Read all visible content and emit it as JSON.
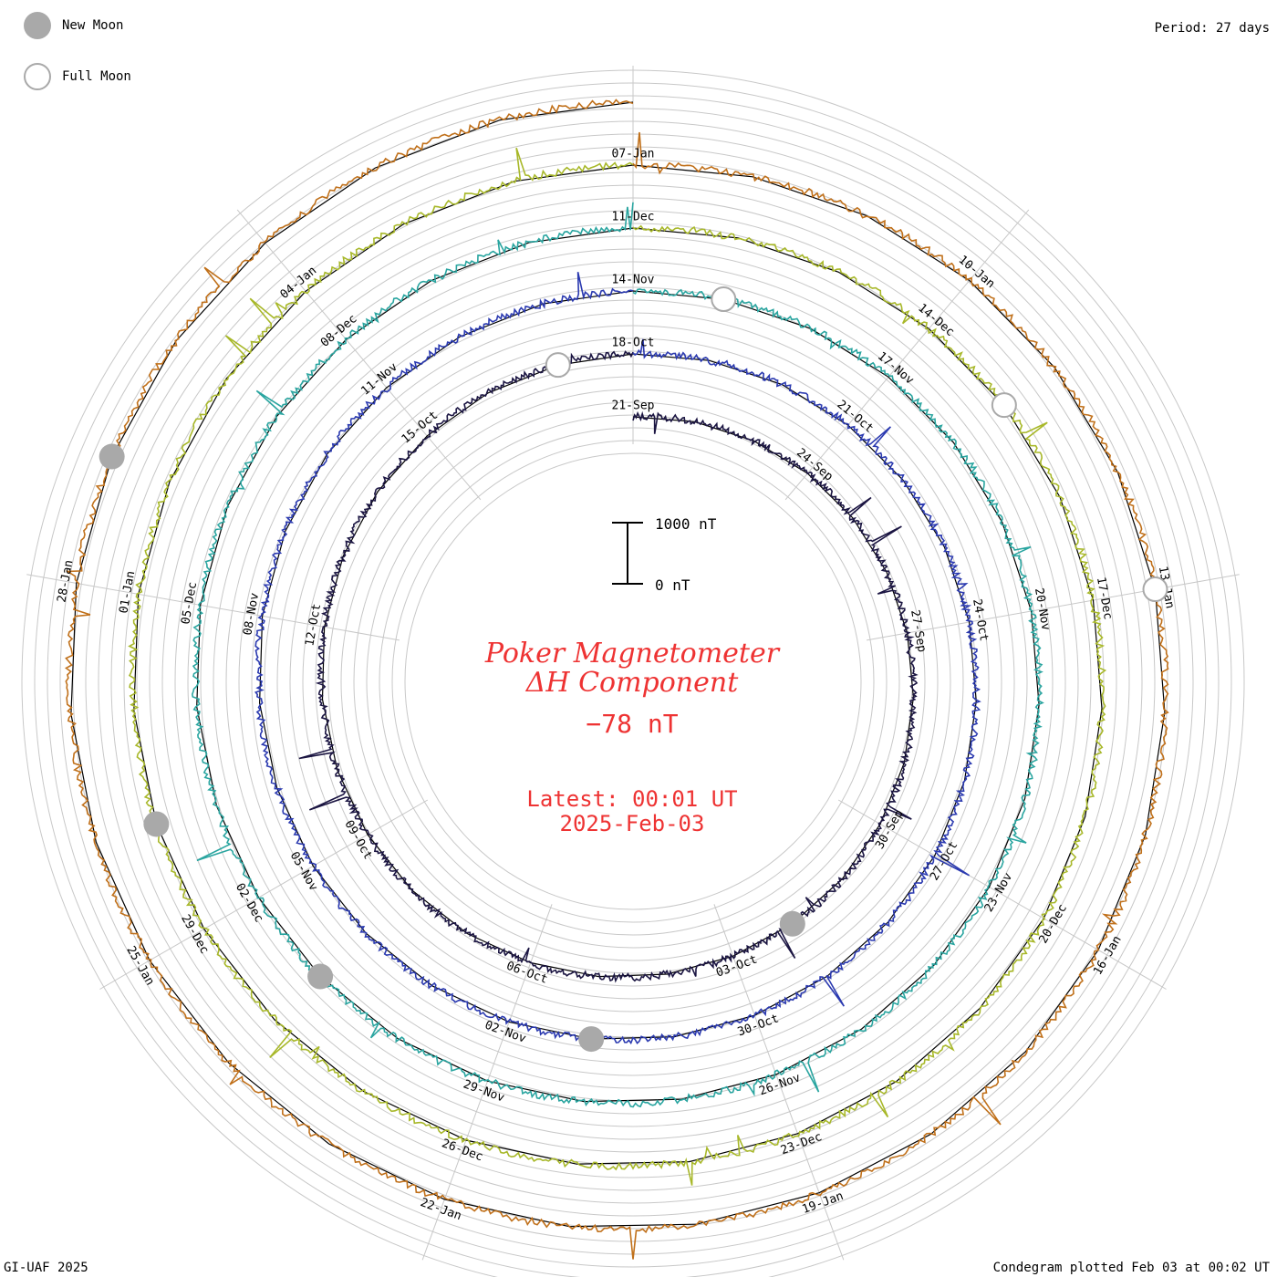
{
  "legend": {
    "new_moon": "New Moon",
    "full_moon": "Full Moon"
  },
  "period": "Period: 27 days",
  "footer_left": "GI-UAF 2025",
  "footer_right": "Condegram plotted Feb 03 at 00:02 UT",
  "center": {
    "title1": "Poker Magnetometer",
    "title2": "ΔH Component",
    "value": "−78 nT",
    "latest_label": "Latest: 00:01 UT",
    "latest_date": "2025-Feb-03"
  },
  "colors": {
    "moon": "#a9a9a9",
    "center_text": "#ee3333",
    "grid": "#c8c8c8",
    "ring": "#000000"
  },
  "chart_data": {
    "type": "condegram",
    "period_days": 27,
    "scale_bar": {
      "top_label": "1000 nT",
      "bottom_label": "0 nT",
      "value_nT": 1000
    },
    "rotations": [
      {
        "ticks": [
          "21-Sep",
          "24-Sep",
          "27-Sep",
          "30-Sep",
          "03-Oct",
          "06-Oct",
          "09-Oct",
          "12-Oct",
          "15-Oct"
        ],
        "color": "#1b1542"
      },
      {
        "ticks": [
          "18-Oct",
          "21-Oct",
          "24-Oct",
          "27-Oct",
          "30-Oct",
          "02-Nov",
          "05-Nov",
          "08-Nov",
          "11-Nov"
        ],
        "color": "#2b3ab0"
      },
      {
        "ticks": [
          "14-Nov",
          "17-Nov",
          "20-Nov",
          "23-Nov",
          "26-Nov",
          "29-Nov",
          "02-Dec",
          "05-Dec",
          "08-Dec"
        ],
        "color": "#2aa5a0"
      },
      {
        "ticks": [
          "11-Dec",
          "14-Dec",
          "17-Dec",
          "20-Dec",
          "23-Dec",
          "26-Dec",
          "29-Dec",
          "01-Jan",
          "04-Jan"
        ],
        "color": "#a8b82a"
      },
      {
        "ticks": [
          "07-Jan",
          "10-Jan",
          "13-Jan",
          "16-Jan",
          "19-Jan",
          "22-Jan",
          "25-Jan",
          "28-Jan"
        ],
        "color": "#c0701a"
      }
    ],
    "new_moons": [
      "2024-Oct-02",
      "2024-Nov-01",
      "2024-Dec-01",
      "2024-Dec-30",
      "2025-Jan-29"
    ],
    "full_moons": [
      "2024-Oct-17",
      "2024-Nov-15",
      "2024-Dec-15",
      "2025-Jan-13"
    ]
  }
}
